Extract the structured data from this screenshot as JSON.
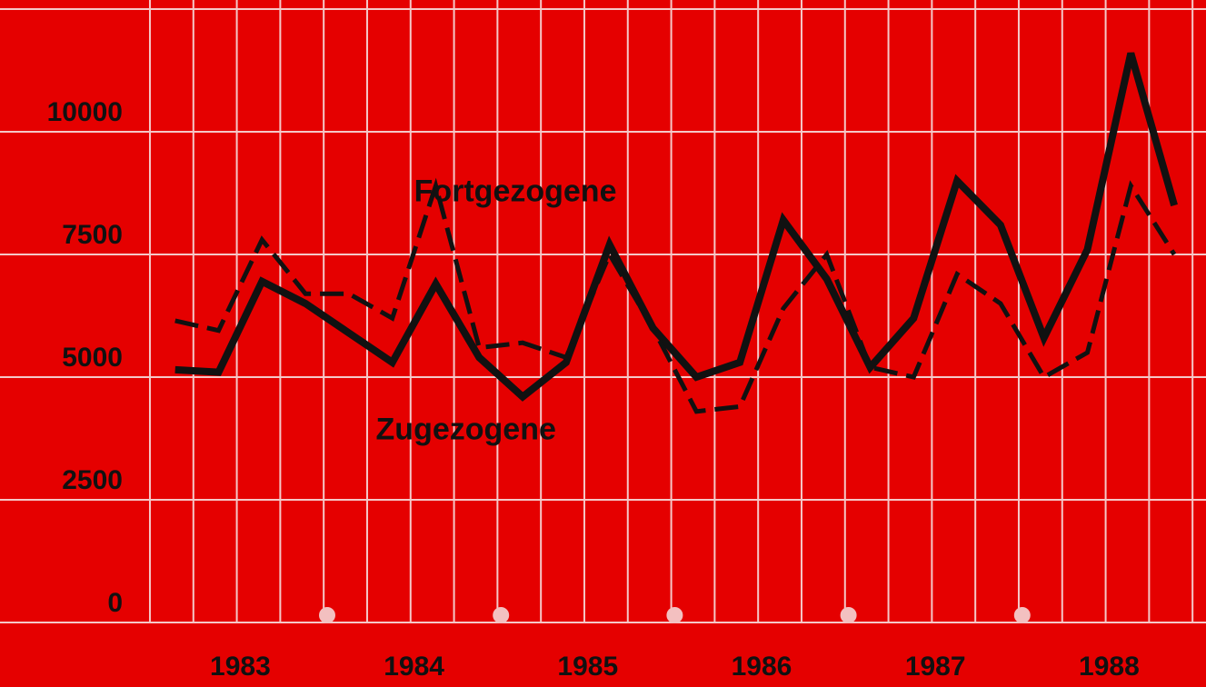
{
  "chart_data": {
    "type": "line",
    "x": [
      1983.125,
      1983.375,
      1983.625,
      1983.875,
      1984.125,
      1984.375,
      1984.625,
      1984.875,
      1985.125,
      1985.375,
      1985.625,
      1985.875,
      1986.125,
      1986.375,
      1986.625,
      1986.875,
      1987.125,
      1987.375,
      1987.625,
      1987.875,
      1988.125,
      1988.375,
      1988.625,
      1988.875
    ],
    "series": [
      {
        "name": "Zugezogene",
        "color": "#111111",
        "dashed": false,
        "values": [
          5150,
          5100,
          6950,
          6500,
          5900,
          5300,
          6900,
          5400,
          4600,
          5300,
          7700,
          6000,
          5000,
          5300,
          8200,
          7000,
          5200,
          6200,
          9000,
          8100,
          5800,
          7600,
          11600,
          8500
        ]
      },
      {
        "name": "Fortgezogene",
        "color": "#111111",
        "dashed": true,
        "values": [
          6150,
          5950,
          7800,
          6700,
          6700,
          6200,
          8900,
          5600,
          5700,
          5400,
          7500,
          6000,
          4300,
          4400,
          6400,
          7500,
          5200,
          5000,
          7100,
          6500,
          5000,
          5500,
          8900,
          7500
        ]
      }
    ],
    "annotations": [
      {
        "text": "Fortgezogene",
        "x": 1984.5,
        "y": 8750
      },
      {
        "text": "Zugezogene",
        "x": 1984.28,
        "y": 3900
      }
    ],
    "xlim": [
      1982.75,
      1989
    ],
    "xticks": [
      {
        "value": 1983.5,
        "label": "1983"
      },
      {
        "value": 1984.5,
        "label": "1984"
      },
      {
        "value": 1985.5,
        "label": "1985"
      },
      {
        "value": 1986.5,
        "label": "1986"
      },
      {
        "value": 1987.5,
        "label": "1987"
      },
      {
        "value": 1988.5,
        "label": "1988"
      }
    ],
    "ylim": [
      0,
      12500
    ],
    "yticks": [
      0,
      2500,
      5000,
      7500,
      {
        "value": 10000,
        "label": "10000"
      }
    ],
    "grid": true
  }
}
